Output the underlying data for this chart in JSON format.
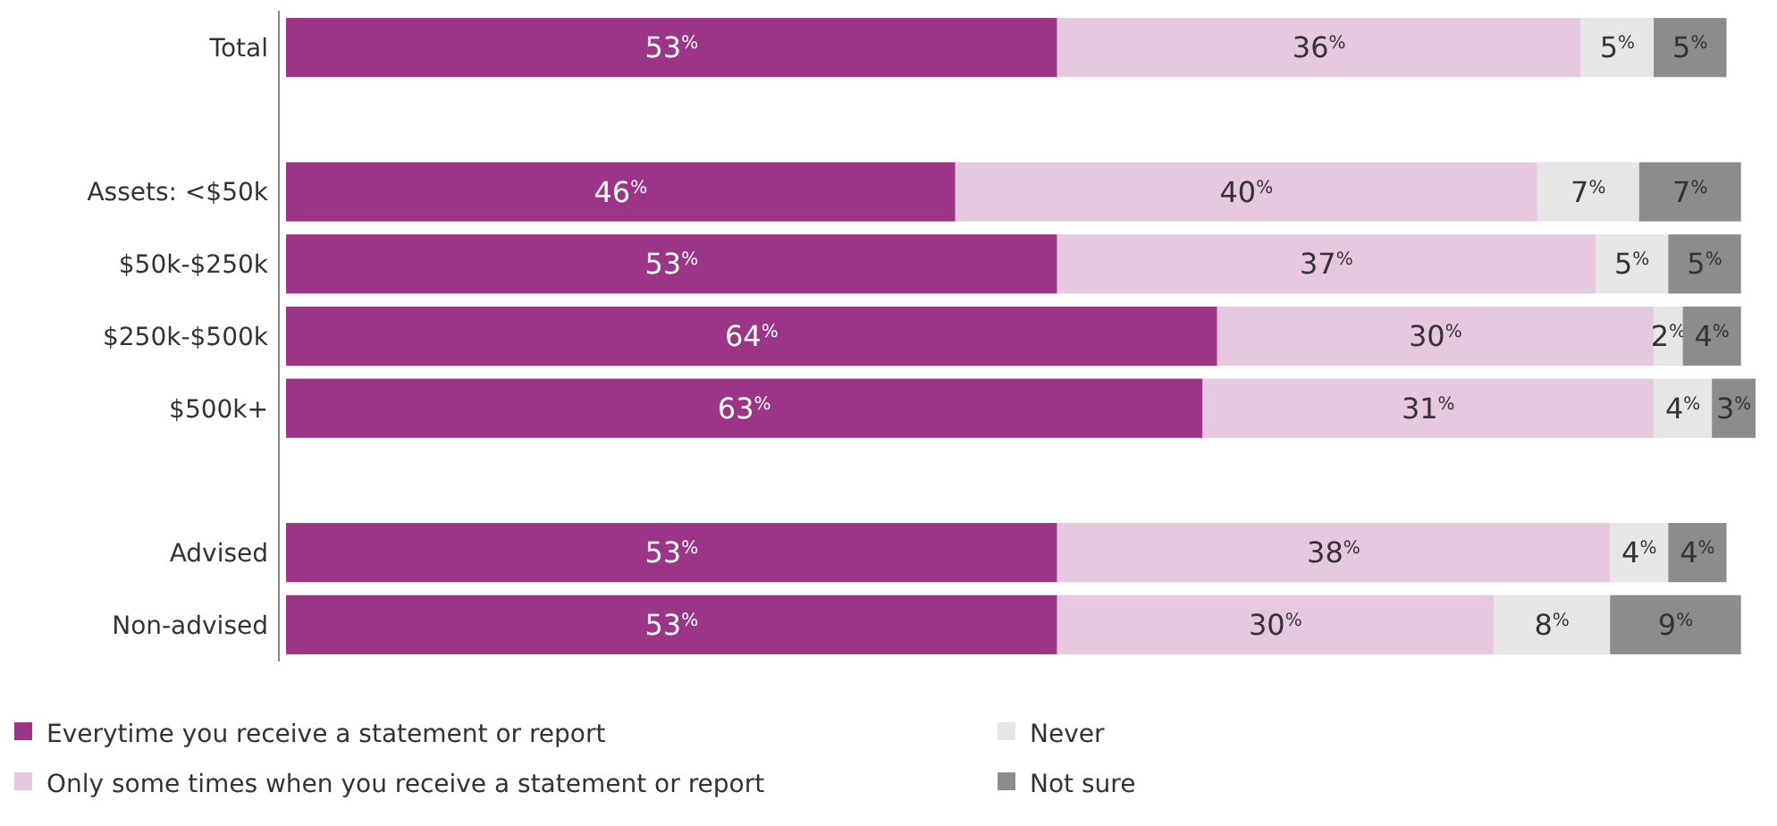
{
  "chart_data": {
    "type": "bar",
    "orientation": "horizontal",
    "stacked": true,
    "legend": "bottom",
    "grid": false,
    "categories": [
      "Total",
      null,
      "Assets: <$50k",
      "$50k-$250k",
      "$250k-$500k",
      "$500k+",
      null,
      "Advised",
      "Non-advised"
    ],
    "series": [
      {
        "name": "Everytime you receive a statement or report",
        "color": "#9c3587",
        "values": [
          53,
          null,
          46,
          53,
          64,
          63,
          null,
          53,
          53
        ],
        "value_labels": [
          "53$^{%}$",
          null,
          "46$^{%}$",
          "53$^{%}$",
          "64$^{%}$",
          "63$^{%}$",
          null,
          "53$^{%}$",
          "53$^{%}$"
        ]
      },
      {
        "name": "Only some times when you receive a statement or report",
        "color": "#e6c8e0",
        "values": [
          36,
          null,
          40,
          37,
          30,
          31,
          null,
          38,
          30
        ],
        "value_labels": [
          "36$^{%}$",
          null,
          "40$^{%}$",
          "37$^{%}$",
          "30$^{%}$",
          "31$^{%}$",
          null,
          "38$^{%}$",
          "30$^{%}$"
        ]
      },
      {
        "name": "Never",
        "color": "#e6e6e6",
        "values": [
          5,
          null,
          7,
          5,
          2,
          4,
          null,
          4,
          8
        ],
        "value_labels": [
          "5$^{%}$",
          null,
          "7$^{%}$",
          "5$^{%}$",
          "2$^{%}$",
          "4$^{%}$",
          null,
          "4$^{%}$",
          "8$^{%}$"
        ]
      },
      {
        "name": "Not sure",
        "color": "#8c8c8c",
        "values": [
          5,
          null,
          7,
          5,
          4,
          3,
          null,
          4,
          9
        ],
        "value_labels": [
          "5$^{%}$",
          null,
          "7$^{%}$",
          "5$^{%}$",
          "4$^{%}$",
          "3$^{%}$",
          null,
          "4$^{%}$",
          "9$^{%}$"
        ]
      }
    ]
  }
}
